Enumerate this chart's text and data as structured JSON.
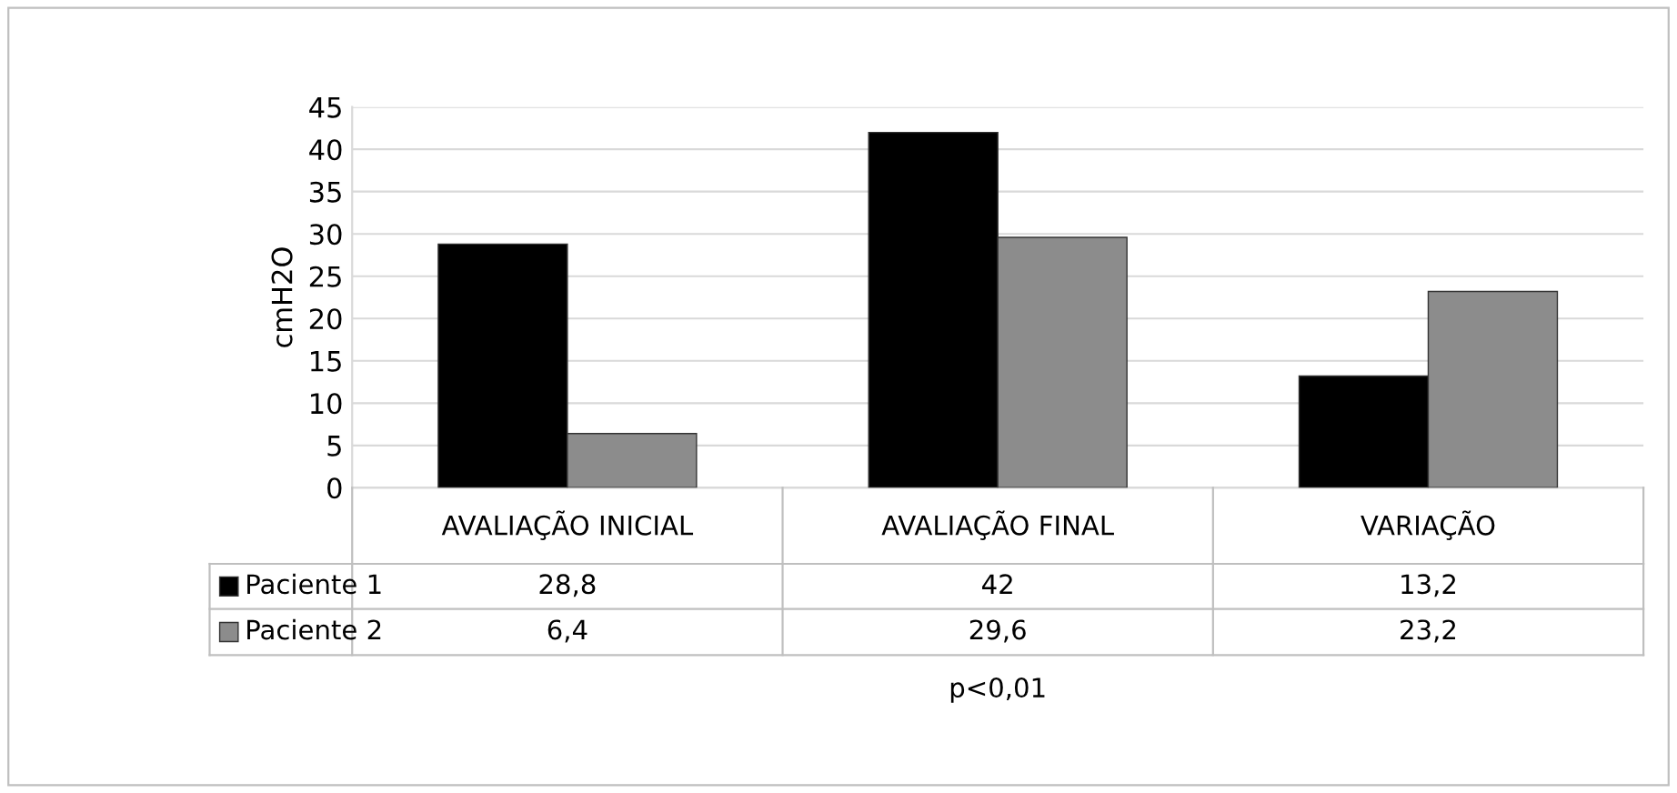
{
  "chart_data": {
    "type": "bar",
    "ylabel": "cmH2O",
    "categories": [
      "AVALIAÇÃO INICIAL",
      "AVALIAÇÃO FINAL",
      "VARIAÇÃO"
    ],
    "series": [
      {
        "name": "Paciente 1",
        "color": "#000000",
        "values": [
          28.8,
          42,
          13.2
        ],
        "value_labels": [
          "28,8",
          "42",
          "13,2"
        ]
      },
      {
        "name": "Paciente 2",
        "color": "#8c8c8c",
        "values": [
          6.4,
          29.6,
          23.2
        ],
        "value_labels": [
          "6,4",
          "29,6",
          "23,2"
        ]
      }
    ],
    "ylim": [
      0,
      45
    ],
    "yticks": [
      0,
      5,
      10,
      15,
      20,
      25,
      30,
      35,
      40,
      45
    ],
    "grid": "y",
    "legend": "bottom left",
    "annotations": [
      "p<0,01"
    ]
  }
}
